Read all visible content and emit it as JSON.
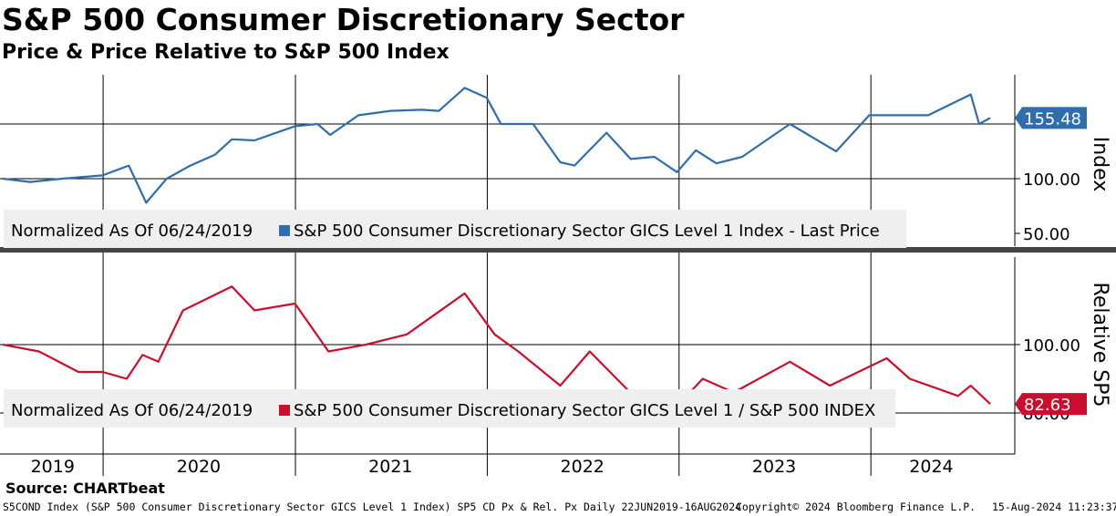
{
  "title": "S&P 500 Consumer Discretionary Sector",
  "subtitle": "Price & Price Relative to S&P 500 Index",
  "source": "Source: CHARTbeat",
  "footer": {
    "left": "S5COND Index (S&P 500 Consumer Discretionary Sector GICS Level 1 Index) SP5 CD Px & Rel. Px  Daily 22JUN2019-16AUG2024",
    "center": "Copyright© 2024 Bloomberg Finance L.P.",
    "right": "15-Aug-2024 11:23:37"
  },
  "colors": {
    "price": "#2f6eab",
    "relative": "#c8102e",
    "legend_bg": "#efefef",
    "divider": "#444444"
  },
  "chart_data": [
    {
      "type": "line",
      "panel": "price",
      "ylabel": "Index",
      "legend": "Normalized As Of 06/24/2019",
      "series": [
        {
          "name": "S&P 500 Consumer Discretionary Sector GICS Level 1 Index - Last Price",
          "last_value": "155.48",
          "points": [
            [
              "2019-06-24",
              100
            ],
            [
              "2019-08-15",
              97
            ],
            [
              "2019-10-15",
              100
            ],
            [
              "2019-12-31",
              103
            ],
            [
              "2020-02-19",
              112
            ],
            [
              "2020-03-23",
              78
            ],
            [
              "2020-05-01",
              100
            ],
            [
              "2020-06-15",
              112
            ],
            [
              "2020-08-01",
              122
            ],
            [
              "2020-09-02",
              136
            ],
            [
              "2020-10-15",
              135
            ],
            [
              "2020-12-31",
              148
            ],
            [
              "2021-02-12",
              150
            ],
            [
              "2021-03-08",
              140
            ],
            [
              "2021-05-01",
              158
            ],
            [
              "2021-07-01",
              162
            ],
            [
              "2021-08-30",
              163
            ],
            [
              "2021-10-01",
              162
            ],
            [
              "2021-11-19",
              183
            ],
            [
              "2021-12-31",
              174
            ],
            [
              "2022-01-27",
              150
            ],
            [
              "2022-03-29",
              150
            ],
            [
              "2022-05-20",
              115
            ],
            [
              "2022-06-16",
              112
            ],
            [
              "2022-08-16",
              142
            ],
            [
              "2022-10-01",
              118
            ],
            [
              "2022-11-15",
              120
            ],
            [
              "2022-12-28",
              106
            ],
            [
              "2023-02-02",
              126
            ],
            [
              "2023-03-13",
              114
            ],
            [
              "2023-05-01",
              120
            ],
            [
              "2023-07-31",
              150
            ],
            [
              "2023-10-27",
              125
            ],
            [
              "2023-12-29",
              158
            ],
            [
              "2024-04-19",
              158
            ],
            [
              "2024-07-09",
              177
            ],
            [
              "2024-07-25",
              150
            ],
            [
              "2024-08-15",
              155.48
            ]
          ]
        }
      ],
      "yticks": [
        "100.00",
        "50.00"
      ]
    },
    {
      "type": "line",
      "panel": "relative",
      "ylabel": "Relative SP5",
      "legend": "Normalized As Of 06/24/2019",
      "series": [
        {
          "name": "S&P 500 Consumer Discretionary Sector GICS Level 1 / S&P 500 INDEX",
          "last_value": "82.63",
          "points": [
            [
              "2019-06-24",
              100
            ],
            [
              "2019-09-01",
              98
            ],
            [
              "2019-11-15",
              92
            ],
            [
              "2019-12-31",
              92
            ],
            [
              "2020-02-15",
              90
            ],
            [
              "2020-03-16",
              97
            ],
            [
              "2020-04-15",
              95
            ],
            [
              "2020-06-01",
              110
            ],
            [
              "2020-09-02",
              117
            ],
            [
              "2020-10-15",
              110
            ],
            [
              "2020-12-31",
              112
            ],
            [
              "2021-03-05",
              98
            ],
            [
              "2021-05-15",
              100
            ],
            [
              "2021-08-01",
              103
            ],
            [
              "2021-11-19",
              115
            ],
            [
              "2022-01-15",
              103
            ],
            [
              "2022-03-01",
              98
            ],
            [
              "2022-05-20",
              88
            ],
            [
              "2022-07-15",
              98
            ],
            [
              "2022-09-30",
              86
            ],
            [
              "2022-12-28",
              82
            ],
            [
              "2023-02-15",
              90
            ],
            [
              "2023-04-15",
              86
            ],
            [
              "2023-07-31",
              95
            ],
            [
              "2023-10-15",
              88
            ],
            [
              "2024-01-31",
              96
            ],
            [
              "2024-03-15",
              90
            ],
            [
              "2024-06-15",
              85
            ],
            [
              "2024-07-09",
              88
            ],
            [
              "2024-08-15",
              82.63
            ]
          ]
        }
      ],
      "yticks": [
        "100.00",
        "80.00"
      ]
    }
  ],
  "x_axis": {
    "labels": [
      "2019",
      "2020",
      "2021",
      "2022",
      "2023",
      "2024"
    ]
  }
}
